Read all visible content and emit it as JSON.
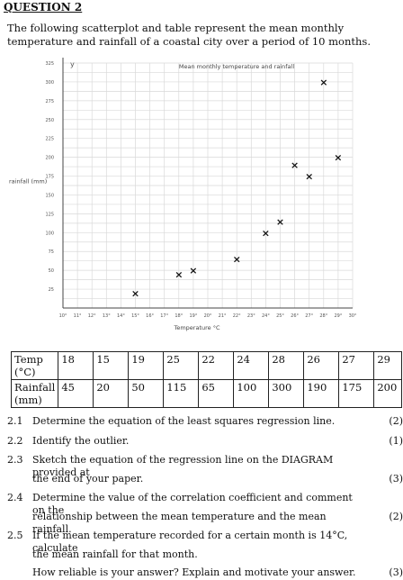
{
  "heading": "QUESTION 2",
  "intro": "The following scatterplot and table represent the mean monthly temperature and rainfall of a coastal city over a period of 10 months.",
  "chart_data": {
    "type": "scatter",
    "title": "Mean monthly temperature and rainfall",
    "xlabel": "Temperature °C",
    "ylabel": "rainfall (mm)",
    "y_axis_letter": "y",
    "xlim": [
      10,
      30
    ],
    "ylim": [
      0,
      325
    ],
    "x_ticks": [
      "10°",
      "11°",
      "12°",
      "13°",
      "14°",
      "15°",
      "16°",
      "17°",
      "18°",
      "19°",
      "20°",
      "21°",
      "22°",
      "23°",
      "24°",
      "25°",
      "26°",
      "27°",
      "28°",
      "29°",
      "30°"
    ],
    "y_ticks": [
      25,
      50,
      75,
      100,
      125,
      150,
      175,
      200,
      225,
      250,
      275,
      300,
      325
    ],
    "grid": true,
    "marker": "×",
    "points": [
      {
        "x": 15,
        "y": 20
      },
      {
        "x": 18,
        "y": 45
      },
      {
        "x": 19,
        "y": 50
      },
      {
        "x": 22,
        "y": 65
      },
      {
        "x": 24,
        "y": 100
      },
      {
        "x": 25,
        "y": 115
      },
      {
        "x": 26,
        "y": 190
      },
      {
        "x": 27,
        "y": 175
      },
      {
        "x": 28,
        "y": 300
      },
      {
        "x": 29,
        "y": 200
      }
    ]
  },
  "table": {
    "rows": [
      {
        "label": "Temp (°C)",
        "values": [
          "18",
          "15",
          "19",
          "25",
          "22",
          "24",
          "28",
          "26",
          "27",
          "29"
        ]
      },
      {
        "label": "Rainfall (mm)",
        "values": [
          "45",
          "20",
          "50",
          "115",
          "65",
          "100",
          "300",
          "190",
          "175",
          "200"
        ]
      }
    ]
  },
  "questions": [
    {
      "num": "2.1",
      "lines": [
        "Determine the equation of the least squares regression line."
      ],
      "marks": "(2)"
    },
    {
      "num": "2.2",
      "lines": [
        "Identify the outlier."
      ],
      "marks": "(1)"
    },
    {
      "num": "2.3",
      "lines": [
        "Sketch the equation of the regression line on the DIAGRAM provided at",
        "the end of your paper."
      ],
      "marks": "(3)"
    },
    {
      "num": "2.4",
      "lines": [
        "Determine the value of the correlation coefficient and comment on the",
        "relationship between the mean temperature and the mean rainfall."
      ],
      "marks": "(2)"
    },
    {
      "num": "2.5",
      "lines": [
        "If the mean temperature recorded for a certain month is 14°C, calculate",
        "the mean rainfall for that month.",
        "How reliable is your answer? Explain and motivate your answer."
      ],
      "marks": "(3)"
    }
  ]
}
